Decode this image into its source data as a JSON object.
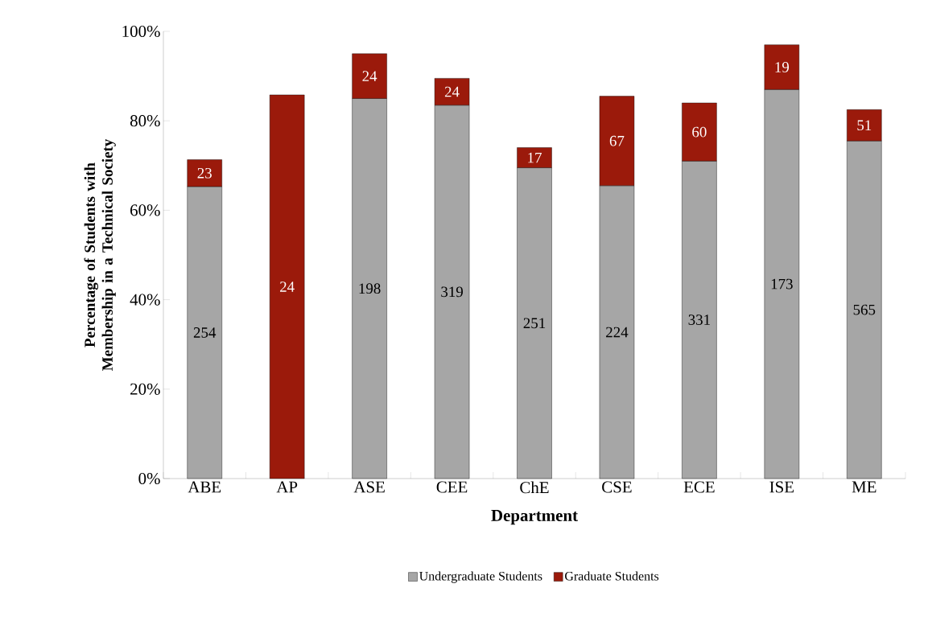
{
  "chart_data": {
    "type": "bar",
    "stacked": true,
    "xlabel": "Department",
    "ylabel": "Percentage of Students with Membership in a Technical Society",
    "categories": [
      "ABE",
      "AP",
      "ASE",
      "CEE",
      "ChE",
      "CSE",
      "ECE",
      "ISE",
      "ME"
    ],
    "series": [
      {
        "name": "Undergraduate Students",
        "color": "#a6a6a6",
        "values": [
          65.3,
          null,
          85,
          83.5,
          69.5,
          65.5,
          71,
          87,
          75.5
        ]
      },
      {
        "name": "Graduate Students",
        "color": "#9b1a0b",
        "values": [
          6,
          85.8,
          10,
          6,
          4.5,
          20,
          13,
          10,
          7
        ]
      }
    ],
    "annotations": [
      "254",
      "198",
      "319",
      "251",
      "224",
      "331",
      "173",
      "565",
      "23",
      "24",
      "24",
      "24",
      "17",
      "67",
      "60",
      "19",
      "51"
    ],
    "ylim": [
      0,
      100
    ],
    "yticks": [
      {
        "value": 0,
        "label": "0%"
      },
      {
        "value": 20,
        "label": "20%"
      },
      {
        "value": 40,
        "label": "40%"
      },
      {
        "value": 60,
        "label": "60%"
      },
      {
        "value": 80,
        "label": "80%"
      },
      {
        "value": 100,
        "label": "100%"
      }
    ],
    "legend": "bottom",
    "grid": false
  }
}
